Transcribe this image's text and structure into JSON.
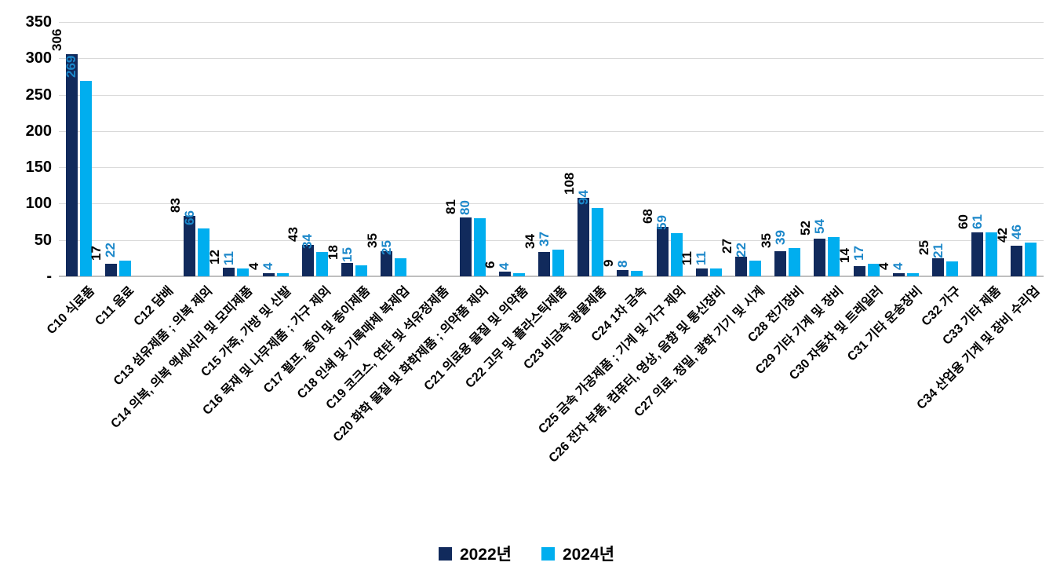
{
  "chart_data": {
    "type": "bar",
    "title": "",
    "xlabel": "",
    "ylabel": "",
    "ylim": [
      0,
      350
    ],
    "ytick_step": 50,
    "ytick_labels": [
      "-",
      "50",
      "100",
      "150",
      "200",
      "250",
      "300",
      "350"
    ],
    "grid": true,
    "legend_position": "bottom",
    "categories": [
      "C10 식료품",
      "C11 음료",
      "C12 담배",
      "C13 섬유제품 ; 의복 제외",
      "C14 의복, 의복 액세서리 및 모피제품",
      "C15 가죽, 가방 및 신발",
      "C16 목재 및 나무제품 ; 가구 제외",
      "C17 펄프, 종이 및 종이제품",
      "C18 인쇄 및 기록매체 복제업",
      "C19 코크스, 연탄 및 석유정제품",
      "C20 화학 물질 및 화학제품 ; 의약품 제외",
      "C21 의료용 물질 및 의약품",
      "C22 고무 및 플라스틱제품",
      "C23 비금속 광물제품",
      "C24 1차 금속",
      "C25 금속 가공제품 ; 기계 및 가구 제외",
      "C26 전자 부품, 컴퓨터, 영상, 음향 및 통신장비",
      "C27 의료, 정밀, 광학 기기 및 시계",
      "C28 전기장비",
      "C29 기타 기계 및 장비",
      "C30 자동차 및 트레일러",
      "C31 기타 운송장비",
      "C32 가구",
      "C33 기타 제품",
      "C34 산업용 기계 및 장비 수리업"
    ],
    "series": [
      {
        "name": "2022년",
        "color": "#112a5c",
        "label_color": "#000000",
        "values": [
          306,
          17,
          null,
          83,
          12,
          4,
          43,
          18,
          35,
          null,
          81,
          6,
          34,
          108,
          9,
          68,
          11,
          27,
          35,
          52,
          14,
          4,
          25,
          60,
          42
        ]
      },
      {
        "name": "2024년",
        "color": "#00aeef",
        "label_color": "#1b87c9",
        "values": [
          269,
          22,
          null,
          66,
          11,
          4,
          34,
          15,
          25,
          null,
          80,
          4,
          37,
          94,
          8,
          59,
          11,
          22,
          39,
          54,
          17,
          4,
          21,
          61,
          46
        ]
      }
    ]
  }
}
